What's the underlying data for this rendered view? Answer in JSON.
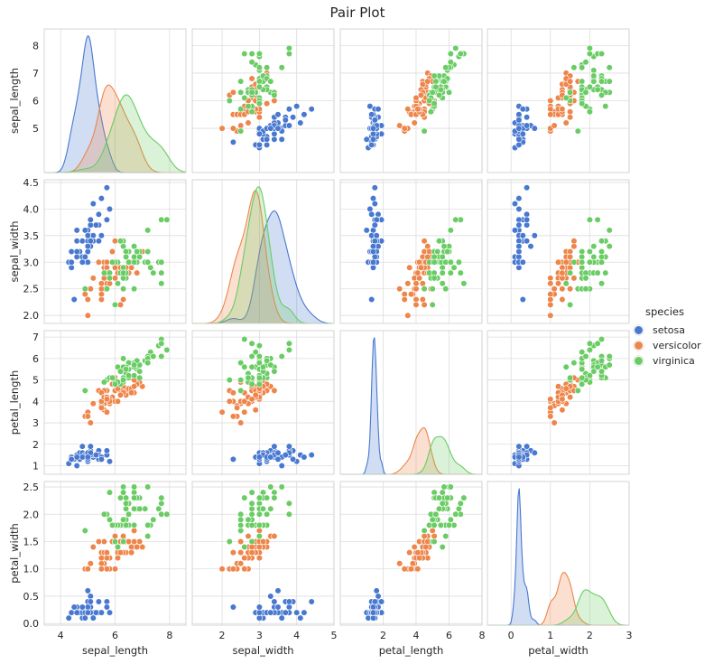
{
  "chart_data": {
    "type": "pairplot",
    "title": "Pair Plot",
    "variables": [
      "sepal_length",
      "sepal_width",
      "petal_length",
      "petal_width"
    ],
    "ticks": {
      "sepal_length": [
        4,
        5,
        6,
        7,
        8
      ],
      "sepal_width": [
        2.0,
        2.5,
        3.0,
        3.5,
        4.0,
        4.5
      ],
      "petal_length": [
        1,
        2,
        3,
        4,
        5,
        6,
        7
      ],
      "petal_width": [
        0.0,
        0.5,
        1.0,
        1.5,
        2.0,
        2.5
      ]
    },
    "x_tick_labels": {
      "sepal_length": [
        "4",
        "6",
        "8"
      ],
      "sepal_width": [
        "2",
        "3",
        "4",
        "5"
      ],
      "petal_length": [
        "2",
        "4",
        "6",
        "8"
      ],
      "petal_width": [
        "0",
        "1",
        "2",
        "3"
      ]
    },
    "x_tick_values": {
      "sepal_length": [
        4,
        6,
        8
      ],
      "sepal_width": [
        2,
        3,
        4,
        5
      ],
      "petal_length": [
        2,
        4,
        6,
        8
      ],
      "petal_width": [
        0,
        1,
        2,
        3
      ]
    },
    "y_tick_labels": {
      "sepal_length": [
        "5",
        "6",
        "7",
        "8"
      ],
      "sepal_width": [
        "2.0",
        "2.5",
        "3.0",
        "3.5",
        "4.0",
        "4.5"
      ],
      "petal_length": [
        "1",
        "2",
        "3",
        "4",
        "5",
        "6",
        "7"
      ],
      "petal_width": [
        "0.0",
        "0.5",
        "1.0",
        "1.5",
        "2.0",
        "2.5"
      ]
    },
    "y_tick_values": {
      "sepal_length": [
        5,
        6,
        7,
        8
      ],
      "sepal_width": [
        2.0,
        2.5,
        3.0,
        3.5,
        4.0,
        4.5
      ],
      "petal_length": [
        1,
        2,
        3,
        4,
        5,
        6,
        7
      ],
      "petal_width": [
        0.0,
        0.5,
        1.0,
        1.5,
        2.0,
        2.5
      ]
    },
    "ranges": {
      "sepal_length": [
        3.4,
        8.6
      ],
      "sepal_width": [
        1.85,
        4.55
      ],
      "petal_length": [
        0.6,
        7.3
      ],
      "petal_width": [
        -0.03,
        2.6
      ]
    },
    "x_ranges": {
      "sepal_length": [
        3.4,
        8.6
      ],
      "sepal_width": [
        1.2,
        5.0
      ],
      "petal_length": [
        -0.6,
        8.0
      ],
      "petal_width": [
        -0.6,
        3.0
      ]
    },
    "legend": {
      "title": "species",
      "position": "right",
      "entries": [
        "setosa",
        "versicolor",
        "virginica"
      ]
    },
    "colors": {
      "setosa": "#4878d0",
      "versicolor": "#ee854a",
      "virginica": "#6acc64"
    },
    "grid": true,
    "series": [
      {
        "name": "setosa",
        "sepal_length": [
          5.1,
          4.9,
          4.7,
          4.6,
          5.0,
          5.4,
          4.6,
          5.0,
          4.4,
          4.9,
          5.4,
          4.8,
          4.8,
          4.3,
          5.8,
          5.7,
          5.4,
          5.1,
          5.7,
          5.1,
          5.4,
          5.1,
          4.6,
          5.1,
          4.8,
          5.0,
          5.0,
          5.2,
          5.2,
          4.7,
          4.8,
          5.4,
          5.2,
          5.5,
          4.9,
          5.0,
          5.5,
          4.9,
          4.4,
          5.1,
          5.0,
          4.5,
          4.4,
          5.0,
          5.1,
          4.8,
          5.1,
          4.6,
          5.3,
          5.0
        ],
        "sepal_width": [
          3.5,
          3.0,
          3.2,
          3.1,
          3.6,
          3.9,
          3.4,
          3.4,
          2.9,
          3.1,
          3.7,
          3.4,
          3.0,
          3.0,
          4.0,
          4.4,
          3.9,
          3.5,
          3.8,
          3.8,
          3.4,
          3.7,
          3.6,
          3.3,
          3.4,
          3.0,
          3.4,
          3.5,
          3.4,
          3.2,
          3.1,
          3.4,
          4.1,
          4.2,
          3.1,
          3.2,
          3.5,
          3.6,
          3.0,
          3.4,
          3.5,
          2.3,
          3.2,
          3.5,
          3.8,
          3.0,
          3.8,
          3.2,
          3.7,
          3.3
        ],
        "petal_length": [
          1.4,
          1.4,
          1.3,
          1.5,
          1.4,
          1.7,
          1.4,
          1.5,
          1.4,
          1.5,
          1.5,
          1.6,
          1.4,
          1.1,
          1.2,
          1.5,
          1.3,
          1.4,
          1.7,
          1.5,
          1.7,
          1.5,
          1.0,
          1.7,
          1.9,
          1.6,
          1.6,
          1.5,
          1.4,
          1.6,
          1.6,
          1.5,
          1.5,
          1.4,
          1.5,
          1.2,
          1.3,
          1.4,
          1.3,
          1.5,
          1.3,
          1.3,
          1.3,
          1.6,
          1.9,
          1.4,
          1.6,
          1.4,
          1.5,
          1.4
        ],
        "petal_width": [
          0.2,
          0.2,
          0.2,
          0.2,
          0.2,
          0.4,
          0.3,
          0.2,
          0.2,
          0.1,
          0.2,
          0.2,
          0.1,
          0.1,
          0.2,
          0.4,
          0.4,
          0.3,
          0.3,
          0.3,
          0.2,
          0.4,
          0.2,
          0.5,
          0.2,
          0.2,
          0.4,
          0.2,
          0.2,
          0.2,
          0.2,
          0.4,
          0.1,
          0.2,
          0.2,
          0.2,
          0.2,
          0.1,
          0.2,
          0.2,
          0.3,
          0.3,
          0.2,
          0.6,
          0.4,
          0.3,
          0.2,
          0.2,
          0.2,
          0.2
        ]
      },
      {
        "name": "versicolor",
        "sepal_length": [
          7.0,
          6.4,
          6.9,
          5.5,
          6.5,
          5.7,
          6.3,
          4.9,
          6.6,
          5.2,
          5.0,
          5.9,
          6.0,
          6.1,
          5.6,
          6.7,
          5.6,
          5.8,
          6.2,
          5.6,
          5.9,
          6.1,
          6.3,
          6.1,
          6.4,
          6.6,
          6.8,
          6.7,
          6.0,
          5.7,
          5.5,
          5.5,
          5.8,
          6.0,
          5.4,
          6.0,
          6.7,
          6.3,
          5.6,
          5.5,
          5.5,
          6.1,
          5.8,
          5.0,
          5.6,
          5.7,
          5.7,
          6.2,
          5.1,
          5.7
        ],
        "sepal_width": [
          3.2,
          3.2,
          3.1,
          2.3,
          2.8,
          2.8,
          3.3,
          2.4,
          2.9,
          2.7,
          2.0,
          3.0,
          2.2,
          2.9,
          2.9,
          3.1,
          3.0,
          2.7,
          2.2,
          2.5,
          3.2,
          2.8,
          2.5,
          2.8,
          2.9,
          3.0,
          2.8,
          3.0,
          2.9,
          2.6,
          2.4,
          2.4,
          2.7,
          2.7,
          3.0,
          3.4,
          3.1,
          2.3,
          3.0,
          2.5,
          2.6,
          3.0,
          2.6,
          2.3,
          2.7,
          3.0,
          2.9,
          2.9,
          2.5,
          2.8
        ],
        "petal_length": [
          4.7,
          4.5,
          4.9,
          4.0,
          4.6,
          4.5,
          4.7,
          3.3,
          4.6,
          3.9,
          3.5,
          4.2,
          4.0,
          4.7,
          3.6,
          4.4,
          4.5,
          4.1,
          4.5,
          3.9,
          4.8,
          4.0,
          4.9,
          4.7,
          4.3,
          4.4,
          4.8,
          5.0,
          4.5,
          3.5,
          3.8,
          3.7,
          3.9,
          5.1,
          4.5,
          4.5,
          4.7,
          4.4,
          4.1,
          4.0,
          4.4,
          4.6,
          4.0,
          3.3,
          4.2,
          4.2,
          4.2,
          4.3,
          3.0,
          4.1
        ],
        "petal_width": [
          1.4,
          1.5,
          1.5,
          1.3,
          1.5,
          1.3,
          1.6,
          1.0,
          1.3,
          1.4,
          1.0,
          1.5,
          1.0,
          1.4,
          1.3,
          1.4,
          1.5,
          1.0,
          1.5,
          1.1,
          1.8,
          1.3,
          1.5,
          1.2,
          1.3,
          1.4,
          1.4,
          1.7,
          1.5,
          1.0,
          1.1,
          1.0,
          1.2,
          1.6,
          1.5,
          1.6,
          1.5,
          1.3,
          1.3,
          1.3,
          1.2,
          1.4,
          1.2,
          1.0,
          1.3,
          1.2,
          1.3,
          1.3,
          1.1,
          1.3
        ]
      },
      {
        "name": "virginica",
        "sepal_length": [
          6.3,
          5.8,
          7.1,
          6.3,
          6.5,
          7.6,
          4.9,
          7.3,
          6.7,
          7.2,
          6.5,
          6.4,
          6.8,
          5.7,
          5.8,
          6.4,
          6.5,
          7.7,
          7.7,
          6.0,
          6.9,
          5.6,
          7.7,
          6.3,
          6.7,
          7.2,
          6.2,
          6.1,
          6.4,
          7.2,
          7.4,
          7.9,
          6.4,
          6.3,
          6.1,
          7.7,
          6.3,
          6.4,
          6.0,
          6.9,
          6.7,
          6.9,
          5.8,
          6.8,
          6.7,
          6.7,
          6.3,
          6.5,
          6.2,
          5.9
        ],
        "sepal_width": [
          3.3,
          2.7,
          3.0,
          2.9,
          3.0,
          3.0,
          2.5,
          2.9,
          2.5,
          3.6,
          3.2,
          2.7,
          3.0,
          2.5,
          2.8,
          3.2,
          3.0,
          3.8,
          2.6,
          2.2,
          3.2,
          2.8,
          2.8,
          2.7,
          3.3,
          3.2,
          2.8,
          3.0,
          2.8,
          3.0,
          2.8,
          3.8,
          2.8,
          2.8,
          2.6,
          3.0,
          3.4,
          3.1,
          3.0,
          3.1,
          3.1,
          3.1,
          2.7,
          3.2,
          3.3,
          3.0,
          2.5,
          3.0,
          3.4,
          3.0
        ],
        "petal_length": [
          6.0,
          5.1,
          5.9,
          5.6,
          5.8,
          6.6,
          4.5,
          6.3,
          5.8,
          6.1,
          5.1,
          5.3,
          5.5,
          5.0,
          5.1,
          5.3,
          5.5,
          6.7,
          6.9,
          5.0,
          5.7,
          4.9,
          6.7,
          4.9,
          5.7,
          6.0,
          4.8,
          4.9,
          5.6,
          5.8,
          6.1,
          6.4,
          5.6,
          5.1,
          5.6,
          6.1,
          5.6,
          5.5,
          4.8,
          5.4,
          5.6,
          5.1,
          5.1,
          5.9,
          5.7,
          5.2,
          5.0,
          5.2,
          5.4,
          5.1
        ],
        "petal_width": [
          2.5,
          1.9,
          2.1,
          1.8,
          2.2,
          2.1,
          1.7,
          1.8,
          1.8,
          2.5,
          2.0,
          1.9,
          2.1,
          2.0,
          2.4,
          2.3,
          1.8,
          2.2,
          2.3,
          1.5,
          2.3,
          2.0,
          2.0,
          1.8,
          2.1,
          1.8,
          1.8,
          1.8,
          2.1,
          1.6,
          1.9,
          2.0,
          2.2,
          1.5,
          1.4,
          2.3,
          2.4,
          1.8,
          1.8,
          2.1,
          2.4,
          2.3,
          1.9,
          2.3,
          2.5,
          2.3,
          1.9,
          2.0,
          2.3,
          1.8
        ]
      }
    ]
  }
}
